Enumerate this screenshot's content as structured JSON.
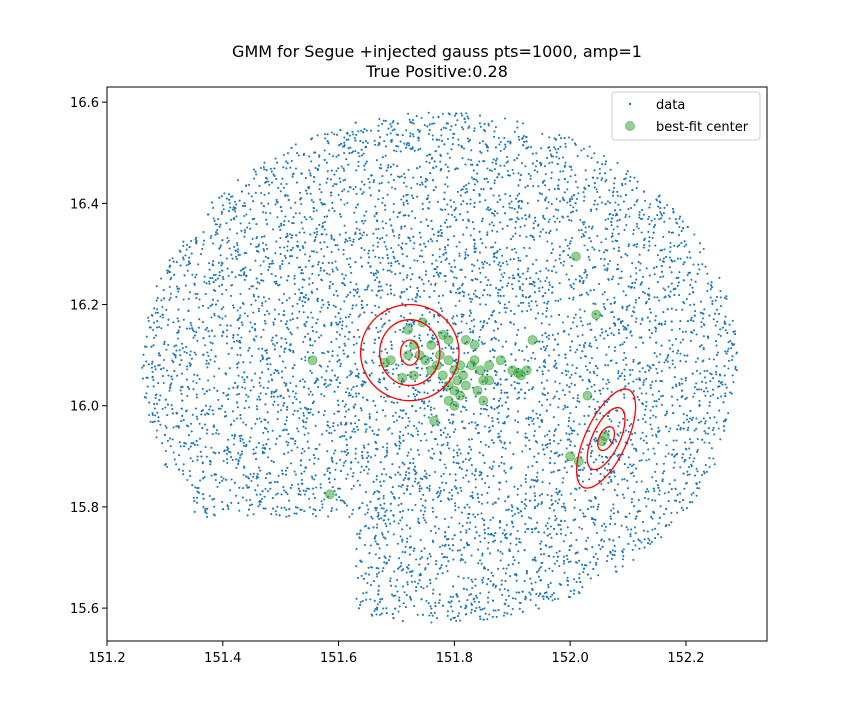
{
  "chart_data": {
    "type": "scatter",
    "title": "GMM for Segue +injected gauss pts=1000, amp=1",
    "subtitle": "True Positive:0.28",
    "xlabel": "",
    "ylabel": "",
    "xlim": [
      151.2,
      152.34
    ],
    "ylim": [
      15.535,
      16.63
    ],
    "grid": false,
    "legend_position": "top-right",
    "x_ticks": [
      151.2,
      151.4,
      151.6,
      151.8,
      152.0,
      152.2
    ],
    "x_tick_labels": [
      "151.2",
      "151.4",
      "151.6",
      "151.8",
      "152.0",
      "152.2"
    ],
    "y_ticks": [
      15.6,
      15.8,
      16.0,
      16.2,
      16.4,
      16.6
    ],
    "y_tick_labels": [
      "15.6",
      "15.8",
      "16.0",
      "16.2",
      "16.4",
      "16.6"
    ],
    "series": [
      {
        "name": "data",
        "marker": "small-dot",
        "color": "#1f77b4",
        "footprint": {
          "center": [
            151.775,
            16.08
          ],
          "rx": 0.515,
          "ry_top": 0.5,
          "ry_bottom": 0.51,
          "approx_count": 7000,
          "notch": {
            "x_range": [
              151.36,
              151.63
            ],
            "y_max": 15.78
          }
        }
      },
      {
        "name": "best-fit center",
        "marker": "circle",
        "color": "#2ca02c",
        "alpha": 0.5,
        "points": [
          [
            151.72,
            16.15
          ],
          [
            151.745,
            16.165
          ],
          [
            151.76,
            16.12
          ],
          [
            151.775,
            16.1
          ],
          [
            151.79,
            16.09
          ],
          [
            151.8,
            16.07
          ],
          [
            151.805,
            16.05
          ],
          [
            151.81,
            16.08
          ],
          [
            151.815,
            16.06
          ],
          [
            151.82,
            16.13
          ],
          [
            151.79,
            16.04
          ],
          [
            151.8,
            16.03
          ],
          [
            151.78,
            16.06
          ],
          [
            151.77,
            16.08
          ],
          [
            151.76,
            16.07
          ],
          [
            151.75,
            16.09
          ],
          [
            151.74,
            16.1
          ],
          [
            151.73,
            16.12
          ],
          [
            151.72,
            16.1
          ],
          [
            151.835,
            16.12
          ],
          [
            151.83,
            16.08
          ],
          [
            151.82,
            16.04
          ],
          [
            151.81,
            16.02
          ],
          [
            151.79,
            16.01
          ],
          [
            151.8,
            16.0
          ],
          [
            151.79,
            16.13
          ],
          [
            151.78,
            16.14
          ],
          [
            151.835,
            16.09
          ],
          [
            151.845,
            16.07
          ],
          [
            151.85,
            16.05
          ],
          [
            151.84,
            16.03
          ],
          [
            151.85,
            16.01
          ],
          [
            151.86,
            16.08
          ],
          [
            151.86,
            16.05
          ],
          [
            151.88,
            16.09
          ],
          [
            151.9,
            16.07
          ],
          [
            151.91,
            16.065
          ],
          [
            151.935,
            16.13
          ],
          [
            151.915,
            16.06
          ],
          [
            151.925,
            16.07
          ],
          [
            151.69,
            16.09
          ],
          [
            151.68,
            16.085
          ],
          [
            151.71,
            16.055
          ],
          [
            151.73,
            16.06
          ],
          [
            151.555,
            16.09
          ],
          [
            151.765,
            15.97
          ],
          [
            152.01,
            16.295
          ],
          [
            152.045,
            16.18
          ],
          [
            152.03,
            16.02
          ],
          [
            151.585,
            15.825
          ],
          [
            152.0,
            15.9
          ],
          [
            152.015,
            15.89
          ],
          [
            152.055,
            15.93
          ],
          [
            152.06,
            15.94
          ]
        ]
      }
    ],
    "gmm_components": [
      {
        "center": [
          151.723,
          16.105
        ],
        "color": "#ff0000",
        "ellipses": [
          {
            "rx": 0.016,
            "ry": 0.025,
            "angle_deg": 0
          },
          {
            "rx": 0.052,
            "ry": 0.065,
            "angle_deg": 0
          },
          {
            "rx": 0.085,
            "ry": 0.095,
            "angle_deg": 0
          }
        ]
      },
      {
        "center": [
          152.062,
          15.935
        ],
        "color": "#ff0000",
        "ellipses": [
          {
            "rx": 0.022,
            "ry": 0.014,
            "angle_deg": -65
          },
          {
            "rx": 0.058,
            "ry": 0.027,
            "angle_deg": -65
          },
          {
            "rx": 0.093,
            "ry": 0.041,
            "angle_deg": -65
          }
        ]
      }
    ]
  }
}
